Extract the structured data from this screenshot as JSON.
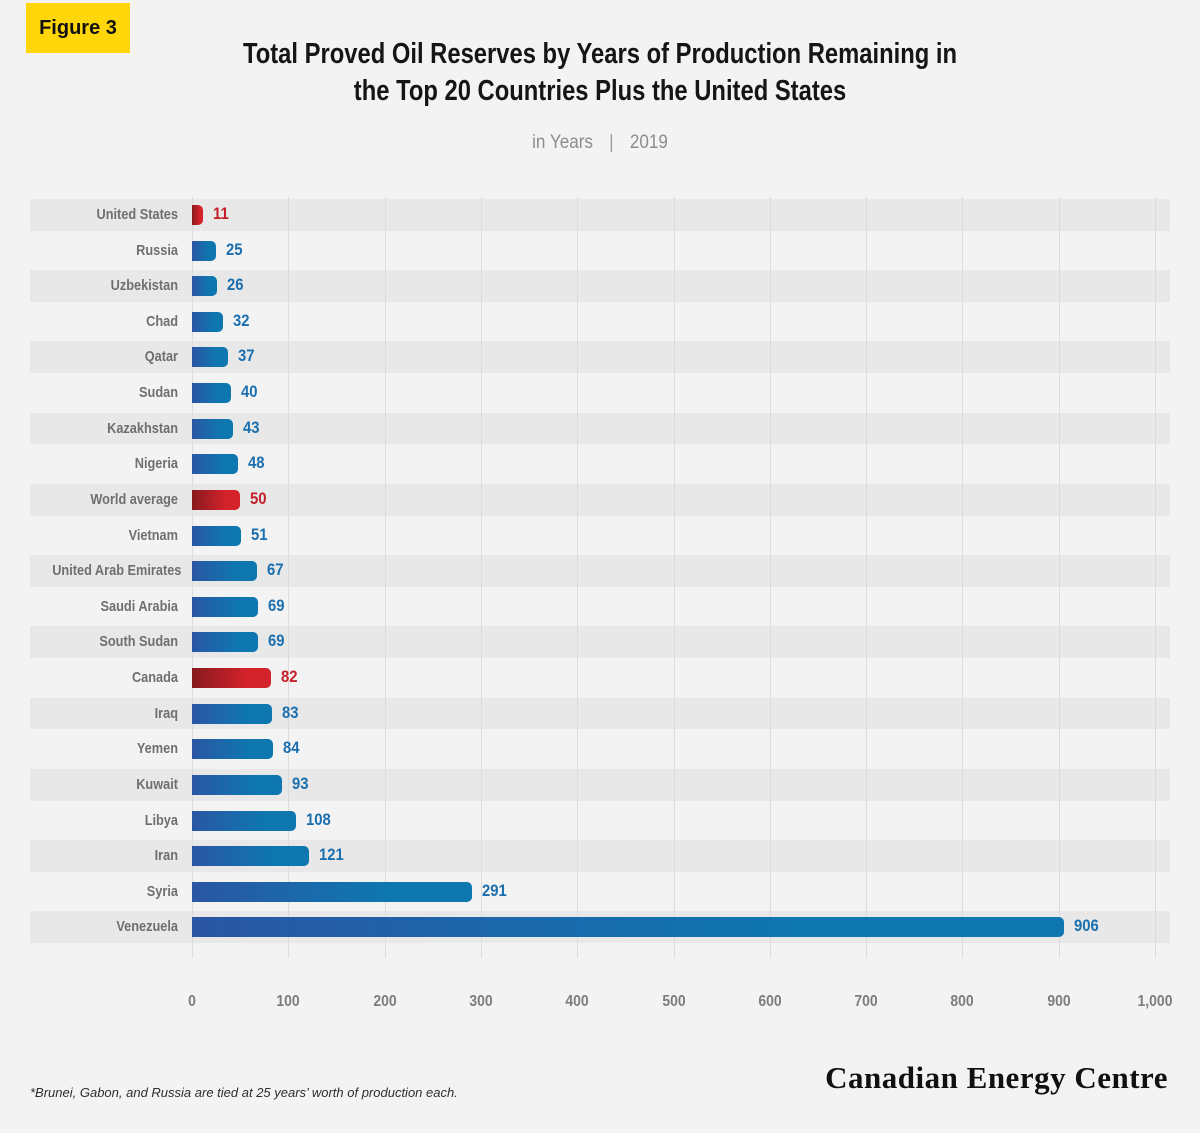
{
  "figure_label": "Figure 3",
  "header": {
    "title_line1": "Total Proved Oil Reserves by Years of Production Remaining in",
    "title_line2": "the Top 20 Countries Plus the United States",
    "subtitle_unit": "in Years",
    "subtitle_separator": "|",
    "subtitle_year": "2019"
  },
  "footnote": "*Brunei, Gabon, and Russia are tied at 25 years’ worth of production each.",
  "branding": "Canadian Energy Centre",
  "colors": {
    "page_bg": "#f3f3f3",
    "stripe": "#e8e8e8",
    "gridline": "#dcdcdc",
    "title": "#151515",
    "subtitle_gray": "#8d8d8d",
    "category_label": "#6f6f6f",
    "axis_label": "#7c7c7c",
    "badge_bg": "#ffd60a",
    "badge_text": "#111111",
    "blue": "#0e77b0",
    "blue_dark": "#2a56a4",
    "blue_value": "#1b6fae",
    "red": "#d4222b",
    "red_dark": "#871a1e",
    "red_value": "#c4202a",
    "footnote": "#2e2e2e",
    "branding": "#111111"
  },
  "chart_data": {
    "type": "bar",
    "orientation": "horizontal",
    "title": "Total Proved Oil Reserves by Years of Production Remaining in the Top 20 Countries Plus the United States",
    "subtitle": "in Years | 2019",
    "xlabel": "",
    "ylabel": "",
    "xlim": [
      0,
      1000
    ],
    "grid": true,
    "x_tick_labels": [
      "0",
      "100",
      "200",
      "300",
      "400",
      "500",
      "600",
      "700",
      "800",
      "900",
      "1,000"
    ],
    "categories": [
      "United States",
      "Russia",
      "Uzbekistan",
      "Chad",
      "Qatar",
      "Sudan",
      "Kazakhstan",
      "Nigeria",
      "World average",
      "Vietnam",
      "United Arab Emirates",
      "Saudi Arabia",
      "South Sudan",
      "Canada",
      "Iraq",
      "Yemen",
      "Kuwait",
      "Libya",
      "Iran",
      "Syria",
      "Venezuela"
    ],
    "values": [
      11,
      25,
      26,
      32,
      37,
      40,
      43,
      48,
      50,
      51,
      67,
      69,
      69,
      82,
      83,
      84,
      93,
      108,
      121,
      291,
      906
    ],
    "bar_colors": [
      "red",
      "blue",
      "blue",
      "blue",
      "blue",
      "blue",
      "blue",
      "blue",
      "red",
      "blue",
      "blue",
      "blue",
      "blue",
      "red",
      "blue",
      "blue",
      "blue",
      "blue",
      "blue",
      "blue",
      "blue"
    ],
    "highlighted_categories": [
      "United States",
      "World average",
      "Canada"
    ]
  }
}
